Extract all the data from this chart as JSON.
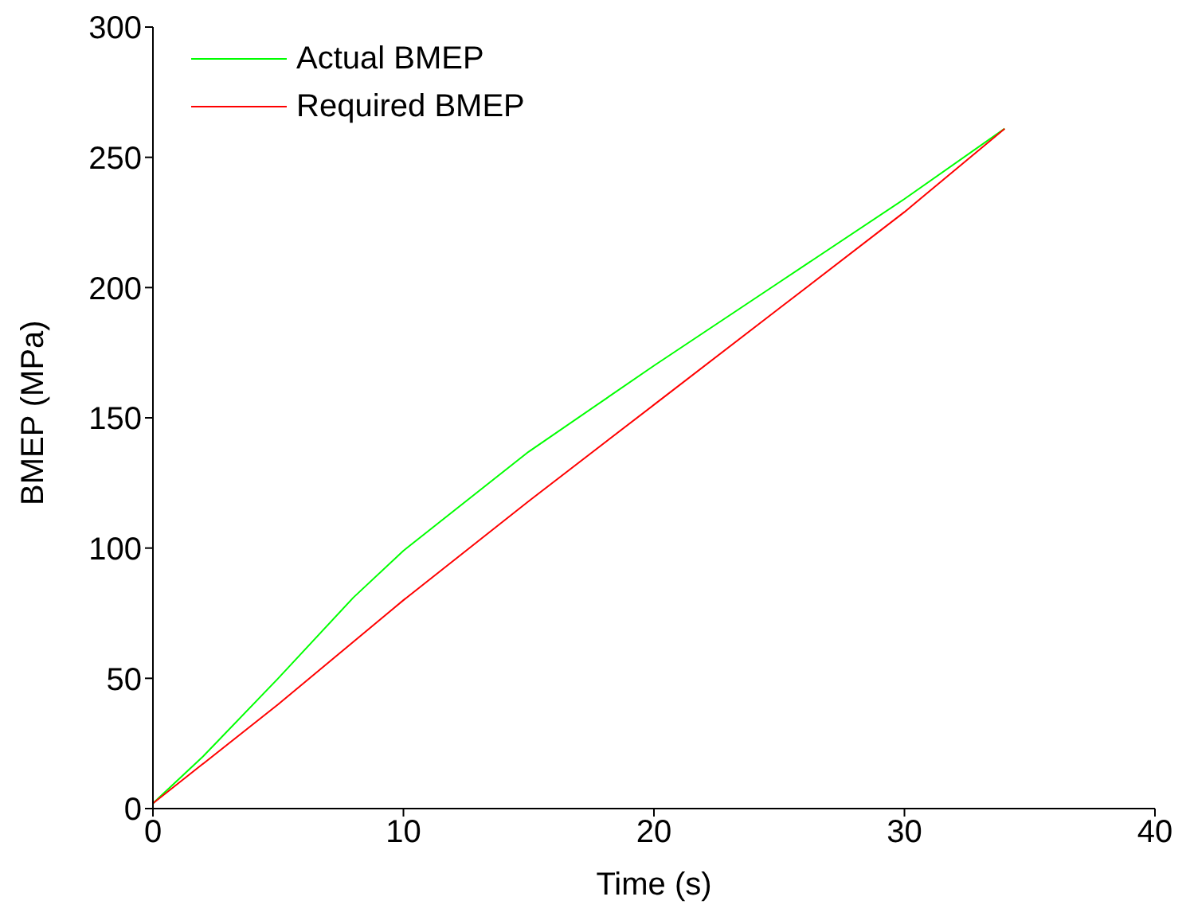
{
  "chart_data": {
    "type": "line",
    "xlabel": "Time (s)",
    "ylabel": "BMEP (MPa)",
    "xlim": [
      0,
      40
    ],
    "xticks": [
      0,
      10,
      20,
      30,
      40
    ],
    "ylim": [
      0,
      300
    ],
    "yticks": [
      0,
      50,
      100,
      150,
      200,
      250,
      300
    ],
    "legend": "top left",
    "marker": "none",
    "line_style": "solid",
    "series": [
      {
        "name": "Actual BMEP",
        "color": "#00ff00",
        "x": [
          0,
          2,
          5,
          8,
          10,
          15,
          20,
          25,
          30,
          34
        ],
        "values": [
          2,
          20,
          50,
          81,
          99,
          137,
          170,
          202,
          234,
          261
        ]
      },
      {
        "name": "Required BMEP",
        "color": "#ff0000",
        "x": [
          0,
          5,
          10,
          15,
          20,
          25,
          30,
          34
        ],
        "values": [
          2,
          40,
          80,
          118,
          155,
          192,
          229,
          261
        ]
      }
    ]
  }
}
